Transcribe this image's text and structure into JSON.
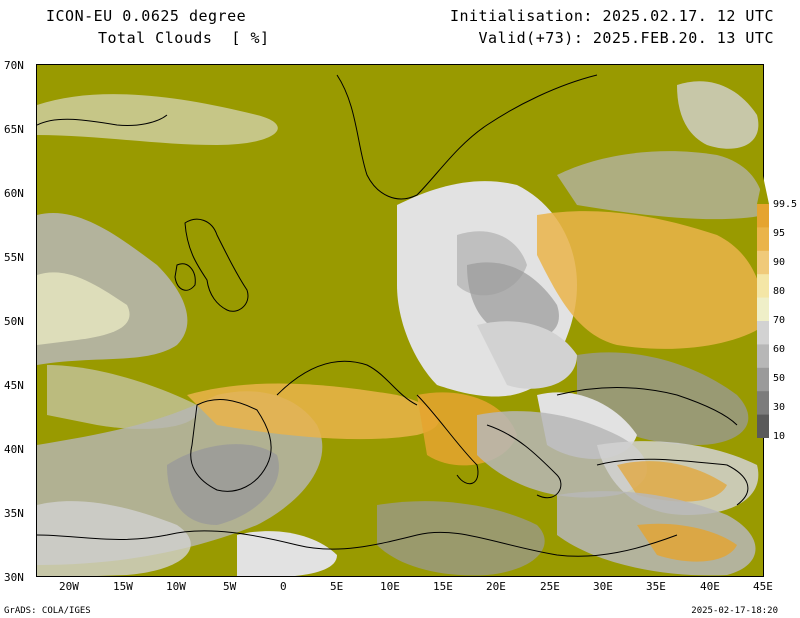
{
  "header": {
    "model": "ICON-EU 0.0625 degree",
    "variable": "Total Clouds  [ %]",
    "initialisation": "Initialisation: 2025.02.17. 12 UTC",
    "valid": "Valid(+73): 2025.FEB.20. 13 UTC"
  },
  "map": {
    "lat_labels": [
      "70N",
      "65N",
      "60N",
      "55N",
      "50N",
      "45N",
      "40N",
      "35N",
      "30N"
    ],
    "lon_labels": [
      "20W",
      "15W",
      "10W",
      "5W",
      "0",
      "5E",
      "10E",
      "15E",
      "20E",
      "25E",
      "30E",
      "35E",
      "40E",
      "45E"
    ],
    "lat_range": [
      30,
      70
    ],
    "lon_range": [
      -23,
      45
    ]
  },
  "colorbar": {
    "labels": [
      "99.5",
      "95",
      "90",
      "80",
      "70",
      "60",
      "50",
      "30",
      "10"
    ],
    "colors": [
      "#999a00",
      "#e5a42f",
      "#eab44a",
      "#f0ca7a",
      "#f4e6a6",
      "#efefc8",
      "#d2d2d2",
      "#b7b7b7",
      "#9a9a9a",
      "#7c7c7c",
      "#5a5a5a"
    ]
  },
  "footer": {
    "left": "GrADS: COLA/IGES",
    "right": "2025-02-17-18:20"
  }
}
